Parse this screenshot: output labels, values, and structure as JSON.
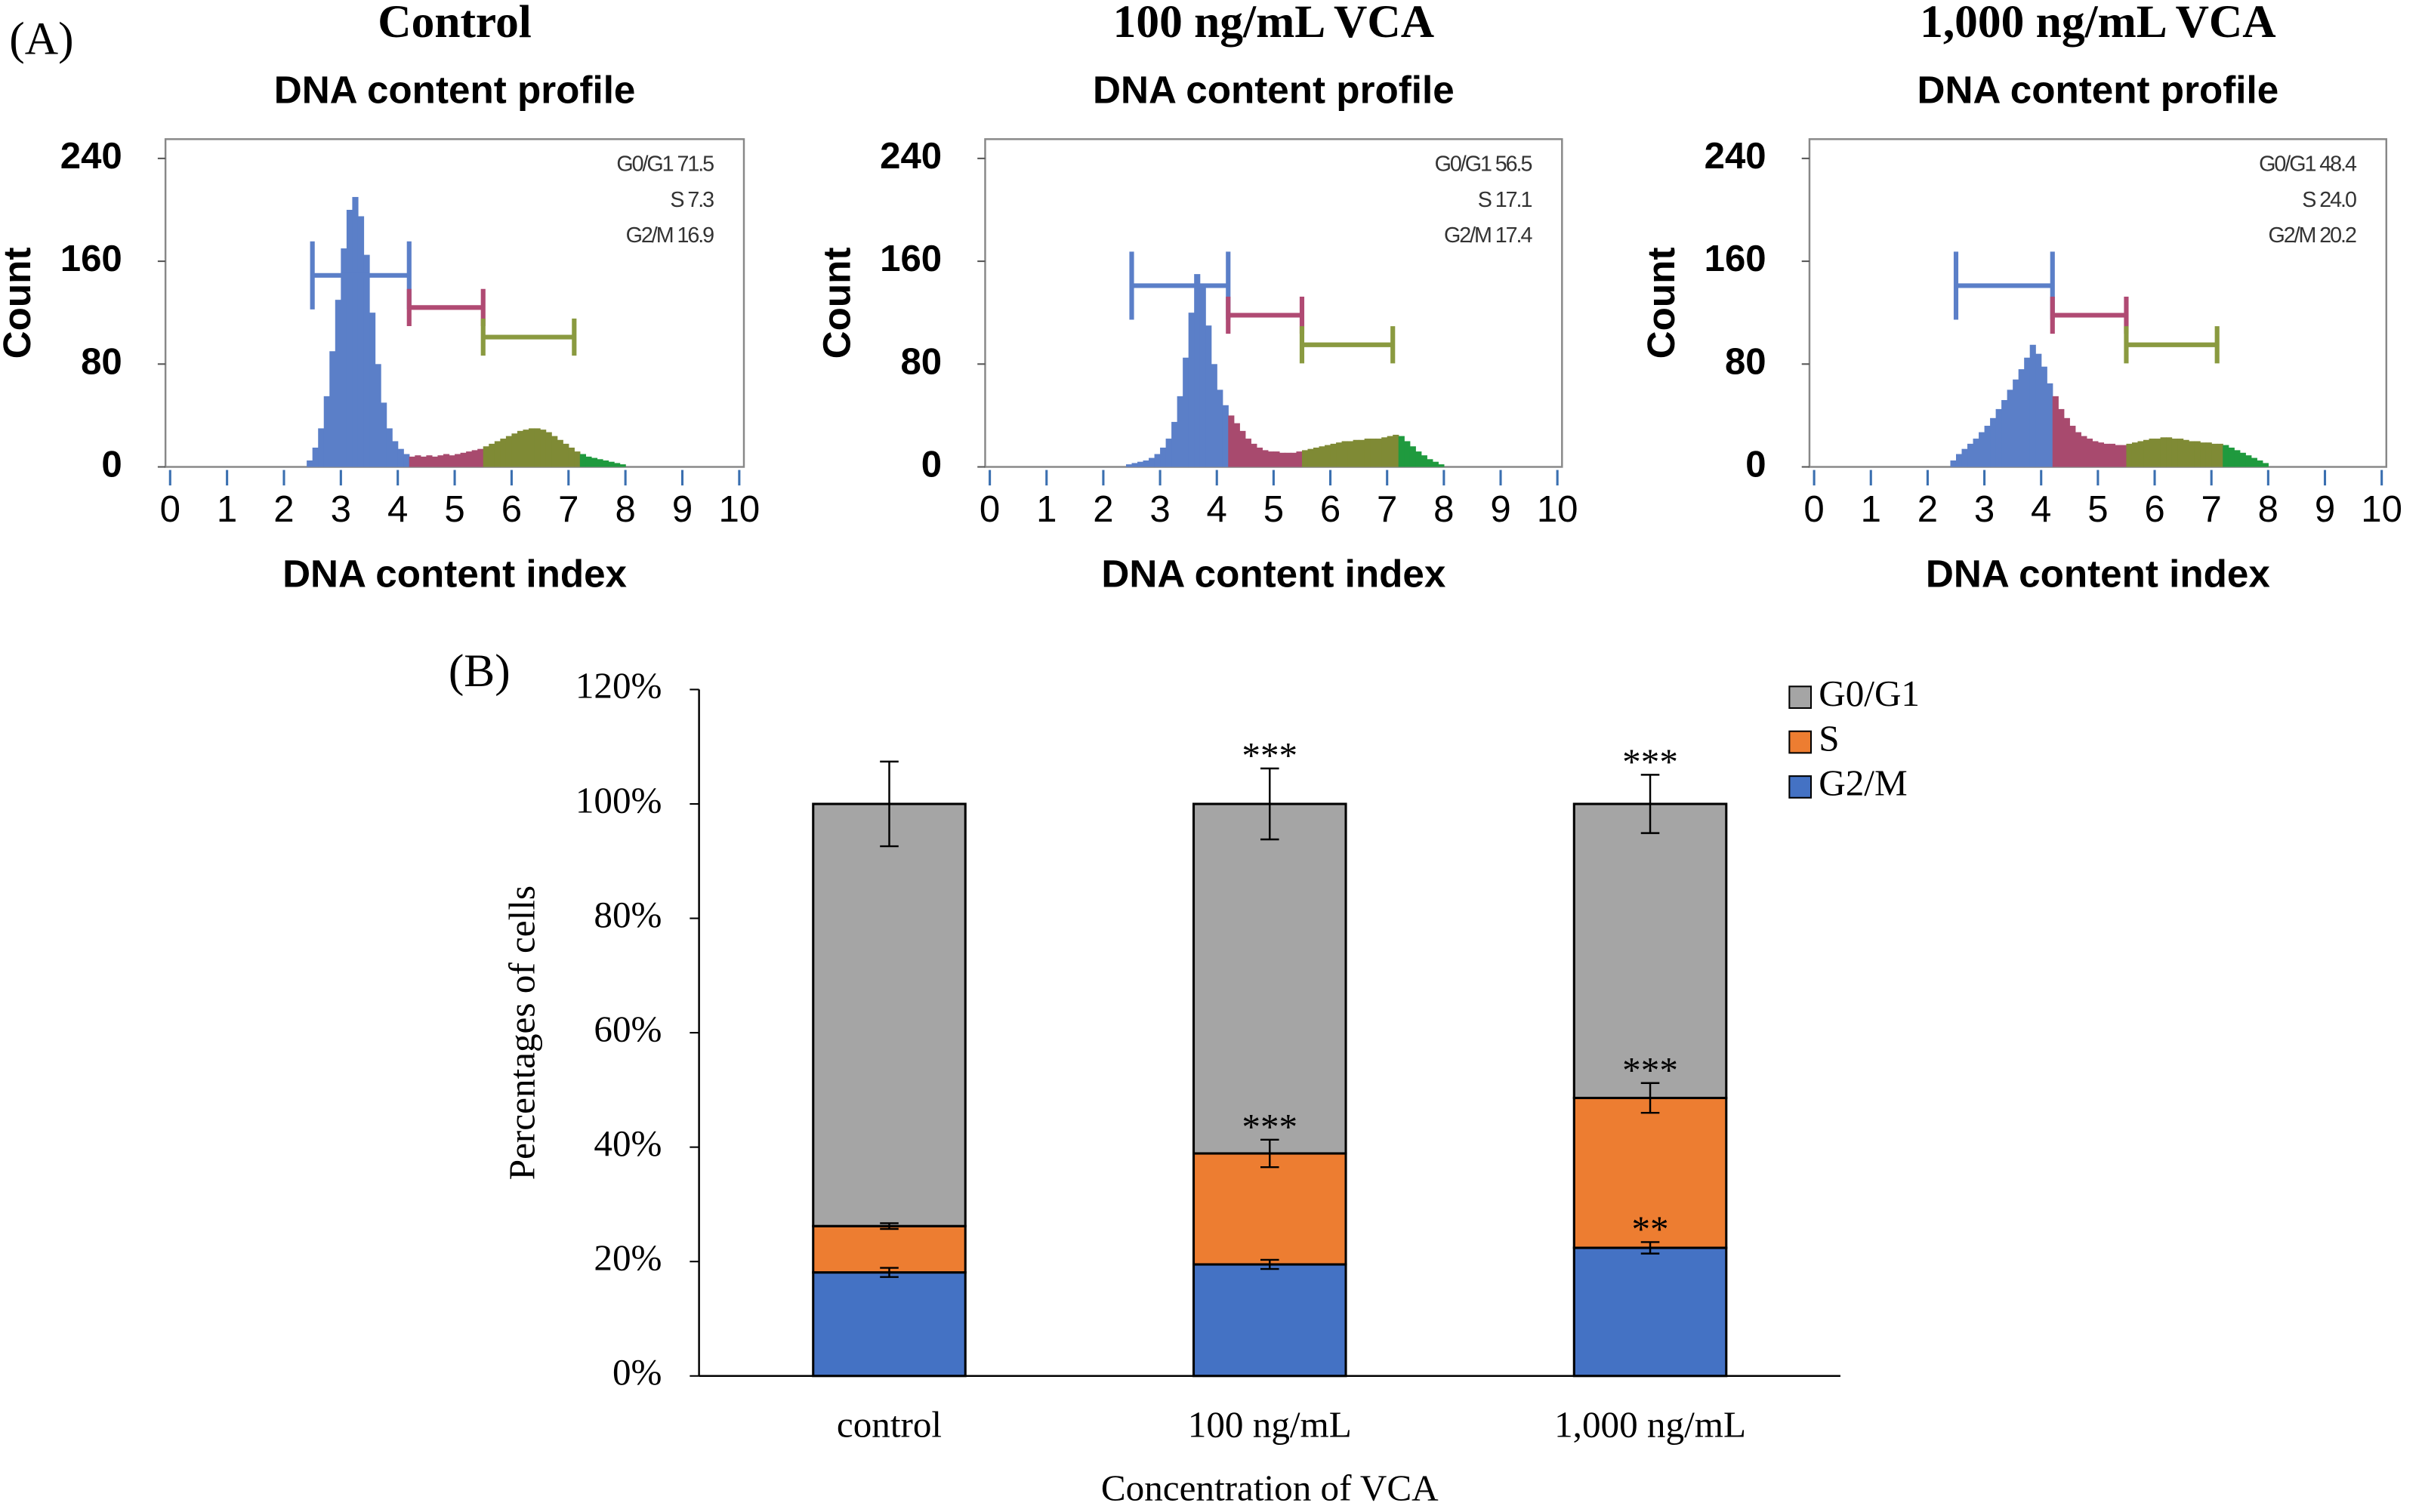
{
  "chart_data": [
    {
      "type": "histogram",
      "label": "(A)",
      "heading": "Control",
      "title": "DNA content profile",
      "x_label": "DNA content index",
      "y_label": "Count",
      "xlim": [
        0,
        10
      ],
      "xticks": [
        0,
        1,
        2,
        3,
        4,
        5,
        6,
        7,
        8,
        9,
        10
      ],
      "ylim": [
        0,
        255
      ],
      "yticks": [
        0,
        80,
        160,
        240
      ],
      "annotations": [
        "G0/G1 71.5",
        "S 7.3",
        "G2/M 16.9"
      ],
      "bins": [
        2.4,
        2.5,
        2.6,
        2.7,
        2.8,
        2.9,
        3.0,
        3.1,
        3.2,
        3.3,
        3.4,
        3.5,
        3.6,
        3.7,
        3.8,
        3.9,
        4.0,
        4.1,
        4.2,
        4.3,
        4.4,
        4.5,
        4.6,
        4.7,
        4.8,
        4.9,
        5.0,
        5.1,
        5.2,
        5.3,
        5.4,
        5.5,
        5.6,
        5.7,
        5.8,
        5.9,
        6.0,
        6.1,
        6.2,
        6.3,
        6.4,
        6.5,
        6.6,
        6.7,
        6.8,
        6.9,
        7.0,
        7.1,
        7.2,
        7.3,
        7.4,
        7.5,
        7.6,
        7.7,
        7.8,
        7.9,
        8.0
      ],
      "counts": [
        5,
        15,
        30,
        55,
        90,
        130,
        170,
        200,
        210,
        195,
        165,
        120,
        80,
        50,
        30,
        20,
        14,
        10,
        8,
        9,
        8,
        9,
        8,
        9,
        10,
        9,
        10,
        11,
        12,
        13,
        14,
        16,
        18,
        20,
        22,
        24,
        26,
        28,
        29,
        30,
        30,
        29,
        27,
        24,
        21,
        18,
        15,
        12,
        10,
        8,
        7,
        6,
        5,
        4,
        3,
        2
      ],
      "fill_segments": [
        {
          "from": 2.4,
          "to": 4.2,
          "color": "#5b7fc8"
        },
        {
          "from": 4.2,
          "to": 5.5,
          "color": "#a84a6e"
        },
        {
          "from": 5.5,
          "to": 7.2,
          "color": "#7f8a35"
        },
        {
          "from": 7.2,
          "to": 8.0,
          "color": "#1f9a3e"
        }
      ],
      "gates": [
        {
          "range": [
            2.5,
            4.2
          ],
          "level": 149,
          "color": "#5b7fc8"
        },
        {
          "range": [
            4.2,
            5.5
          ],
          "level": 124,
          "color": "#b04a73"
        },
        {
          "range": [
            5.5,
            7.1
          ],
          "level": 101,
          "color": "#8a9a40"
        }
      ]
    },
    {
      "type": "histogram",
      "heading": "100 ng/mL VCA",
      "title": "DNA content profile",
      "x_label": "DNA content index",
      "y_label": "Count",
      "xlim": [
        0,
        10
      ],
      "xticks": [
        0,
        1,
        2,
        3,
        4,
        5,
        6,
        7,
        8,
        9,
        10
      ],
      "ylim": [
        0,
        255
      ],
      "yticks": [
        0,
        80,
        160,
        240
      ],
      "annotations": [
        "G0/G1 56.5",
        "S 17.1",
        "G2/M 17.4"
      ],
      "bins": [
        2.4,
        2.5,
        2.6,
        2.7,
        2.8,
        2.9,
        3.0,
        3.1,
        3.2,
        3.3,
        3.4,
        3.5,
        3.6,
        3.7,
        3.8,
        3.9,
        4.0,
        4.1,
        4.2,
        4.3,
        4.4,
        4.5,
        4.6,
        4.7,
        4.8,
        4.9,
        5.0,
        5.1,
        5.2,
        5.3,
        5.4,
        5.5,
        5.6,
        5.7,
        5.8,
        5.9,
        6.0,
        6.1,
        6.2,
        6.3,
        6.4,
        6.5,
        6.6,
        6.7,
        6.8,
        6.9,
        7.0,
        7.1,
        7.2,
        7.3,
        7.4,
        7.5,
        7.6,
        7.7,
        7.8,
        7.9,
        8.0
      ],
      "counts": [
        2,
        3,
        4,
        5,
        7,
        10,
        15,
        22,
        35,
        55,
        85,
        120,
        150,
        140,
        110,
        80,
        60,
        48,
        40,
        34,
        28,
        22,
        18,
        15,
        13,
        12,
        12,
        11,
        11,
        11,
        12,
        13,
        14,
        15,
        16,
        17,
        18,
        19,
        20,
        20,
        21,
        21,
        22,
        22,
        22,
        23,
        24,
        25,
        24,
        20,
        16,
        12,
        9,
        6,
        4,
        2
      ],
      "fill_segments": [
        {
          "from": 2.4,
          "to": 4.2,
          "color": "#5b7fc8"
        },
        {
          "from": 4.2,
          "to": 5.5,
          "color": "#a84a6e"
        },
        {
          "from": 5.5,
          "to": 7.2,
          "color": "#7f8a35"
        },
        {
          "from": 7.2,
          "to": 8.0,
          "color": "#1f9a3e"
        }
      ],
      "gates": [
        {
          "range": [
            2.5,
            4.2
          ],
          "level": 141,
          "color": "#5b7fc8"
        },
        {
          "range": [
            4.2,
            5.5
          ],
          "level": 118,
          "color": "#b04a73"
        },
        {
          "range": [
            5.5,
            7.1
          ],
          "level": 95,
          "color": "#8a9a40"
        }
      ]
    },
    {
      "type": "histogram",
      "heading": "1,000 ng/mL VCA",
      "title": "DNA content profile",
      "x_label": "DNA content index",
      "y_label": "Count",
      "xlim": [
        0,
        10
      ],
      "xticks": [
        0,
        1,
        2,
        3,
        4,
        5,
        6,
        7,
        8,
        9,
        10
      ],
      "ylim": [
        0,
        255
      ],
      "yticks": [
        0,
        80,
        160,
        240
      ],
      "annotations": [
        "G0/G1 48.4",
        "S 24.0",
        "G2/M 20.2"
      ],
      "bins": [
        2.4,
        2.5,
        2.6,
        2.7,
        2.8,
        2.9,
        3.0,
        3.1,
        3.2,
        3.3,
        3.4,
        3.5,
        3.6,
        3.7,
        3.8,
        3.9,
        4.0,
        4.1,
        4.2,
        4.3,
        4.4,
        4.5,
        4.6,
        4.7,
        4.8,
        4.9,
        5.0,
        5.1,
        5.2,
        5.3,
        5.4,
        5.5,
        5.6,
        5.7,
        5.8,
        5.9,
        6.0,
        6.1,
        6.2,
        6.3,
        6.4,
        6.5,
        6.6,
        6.7,
        6.8,
        6.9,
        7.0,
        7.1,
        7.2,
        7.3,
        7.4,
        7.5,
        7.6,
        7.7,
        7.8,
        7.9,
        8.0
      ],
      "counts": [
        5,
        10,
        14,
        18,
        22,
        27,
        32,
        38,
        45,
        52,
        60,
        68,
        76,
        85,
        95,
        88,
        78,
        65,
        55,
        45,
        38,
        32,
        27,
        24,
        22,
        20,
        19,
        18,
        18,
        17,
        17,
        18,
        19,
        20,
        21,
        22,
        22,
        23,
        23,
        22,
        22,
        21,
        20,
        20,
        19,
        19,
        18,
        18,
        17,
        15,
        13,
        11,
        9,
        7,
        5,
        3
      ],
      "fill_segments": [
        {
          "from": 2.4,
          "to": 4.2,
          "color": "#5b7fc8"
        },
        {
          "from": 4.2,
          "to": 5.5,
          "color": "#a84a6e"
        },
        {
          "from": 5.5,
          "to": 7.2,
          "color": "#7f8a35"
        },
        {
          "from": 7.2,
          "to": 8.0,
          "color": "#1f9a3e"
        }
      ],
      "gates": [
        {
          "range": [
            2.5,
            4.2
          ],
          "level": 141,
          "color": "#5b7fc8"
        },
        {
          "range": [
            4.2,
            5.5
          ],
          "level": 118,
          "color": "#b04a73"
        },
        {
          "range": [
            5.5,
            7.1
          ],
          "level": 95,
          "color": "#8a9a40"
        }
      ]
    },
    {
      "type": "stacked_bar",
      "label": "(B)",
      "x_label": "Concentration of VCA",
      "y_label": "Percentages of cells",
      "categories": [
        "control",
        "100 ng/mL",
        "1,000 ng/mL"
      ],
      "ylim": [
        0,
        120
      ],
      "yticks": [
        {
          "value": 0,
          "label": "0%"
        },
        {
          "value": 20,
          "label": "20%"
        },
        {
          "value": 40,
          "label": "40%"
        },
        {
          "value": 60,
          "label": "60%"
        },
        {
          "value": 80,
          "label": "80%"
        },
        {
          "value": 100,
          "label": "100%"
        },
        {
          "value": 120,
          "label": "120%"
        }
      ],
      "grid": false,
      "series": [
        {
          "name": "G2/M",
          "color": "#4472c4",
          "values": [
            18.1,
            19.5,
            22.4
          ],
          "errors": [
            0.8,
            0.8,
            1.0
          ],
          "significance": [
            null,
            null,
            "**"
          ]
        },
        {
          "name": "S",
          "color": "#ed7d31",
          "values": [
            8.1,
            19.4,
            26.2
          ],
          "errors": [
            0.5,
            2.4,
            2.6
          ],
          "significance": [
            null,
            "***",
            "***"
          ]
        },
        {
          "name": "G0/G1",
          "color": "#a5a5a5",
          "values": [
            73.8,
            61.1,
            51.4
          ],
          "errors": [
            7.4,
            6.2,
            5.1
          ],
          "significance": [
            null,
            "***",
            "***"
          ]
        }
      ]
    }
  ]
}
